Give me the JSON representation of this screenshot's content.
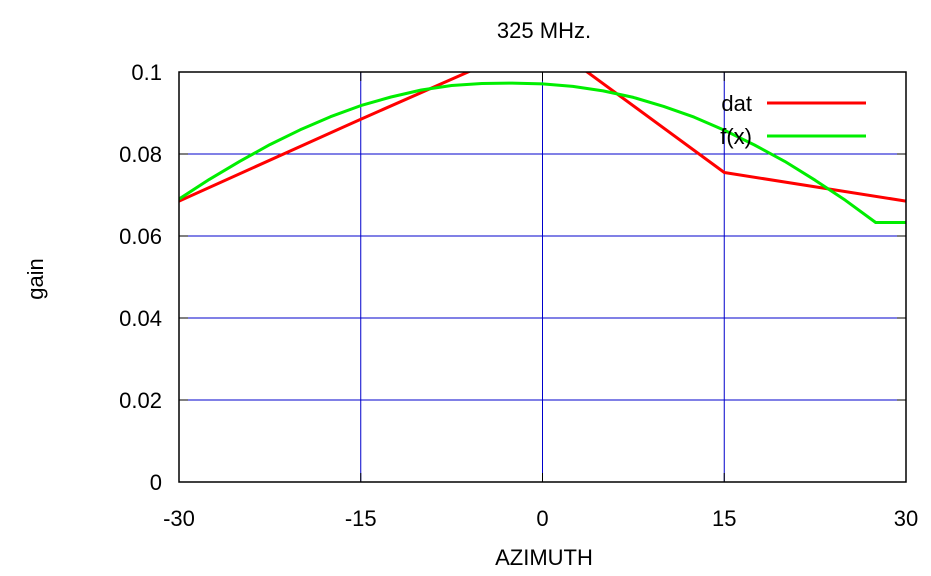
{
  "chart_data": {
    "type": "line",
    "title": "325 MHz.",
    "xlabel": "AZIMUTH",
    "ylabel": "gain",
    "xlim": [
      -30,
      30
    ],
    "ylim": [
      0,
      0.1
    ],
    "xticks": [
      -30,
      -15,
      0,
      15,
      30
    ],
    "xtick_labels": [
      "-30",
      "-15",
      "0",
      "15",
      "30"
    ],
    "yticks": [
      0,
      0.02,
      0.04,
      0.06,
      0.08,
      0.1
    ],
    "ytick_labels": [
      "0",
      "0.02",
      "0.04",
      "0.06",
      "0.08",
      "0.1"
    ],
    "grid": true,
    "legend_position": "top-right",
    "series": [
      {
        "name": "dat",
        "color": "#ff0000",
        "x": [
          -30,
          -15,
          0,
          15,
          30
        ],
        "y": [
          0.0685,
          0.0885,
          0.108,
          0.0755,
          0.0685
        ]
      },
      {
        "name": "f(x)",
        "color": "#00ee00",
        "x": [
          -30,
          -27.5,
          -25,
          -22.5,
          -20,
          -17.5,
          -15,
          -12.5,
          -10,
          -7.5,
          -5,
          -2.5,
          0,
          2.5,
          5,
          7.5,
          10,
          12.5,
          15,
          17.5,
          20,
          22.5,
          25,
          27.5,
          30
        ],
        "y": [
          0.069,
          0.0738,
          0.0782,
          0.0823,
          0.0859,
          0.0891,
          0.0918,
          0.0939,
          0.0956,
          0.0967,
          0.0972,
          0.0973,
          0.0971,
          0.0965,
          0.0954,
          0.0938,
          0.0916,
          0.089,
          0.0858,
          0.0822,
          0.0782,
          0.0736,
          0.0687,
          0.0633,
          0.0633
        ]
      }
    ]
  }
}
